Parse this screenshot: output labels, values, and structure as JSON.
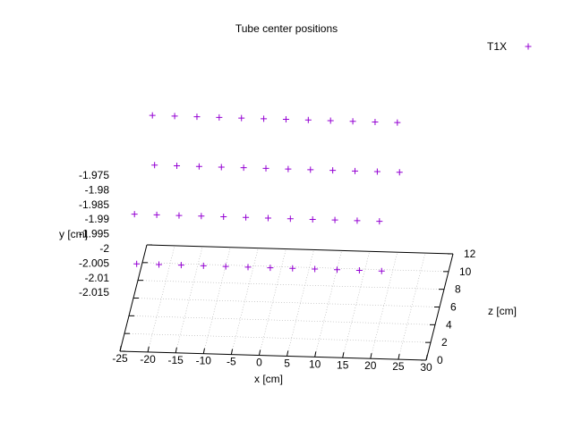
{
  "chart_data": {
    "type": "scatter",
    "title": "Tube center positions",
    "xlabel": "x [cm]",
    "ylabel": "y [cm]",
    "zlabel": "z [cm]",
    "x_ticks": [
      "-25",
      "-20",
      "-15",
      "-10",
      "-5",
      "0",
      "5",
      "10",
      "15",
      "20",
      "25",
      "30"
    ],
    "y_ticks": [
      "-1.975",
      "-1.98",
      "-1.985",
      "-1.99",
      "-1.995",
      "-2",
      "-2.005",
      "-2.01",
      "-2.015"
    ],
    "z_ticks": [
      "0",
      "2",
      "4",
      "6",
      "8",
      "10",
      "12"
    ],
    "xlim": [
      -25,
      30
    ],
    "ylim": [
      -2.02,
      -1.975
    ],
    "zlim": [
      0,
      12
    ],
    "grid": true,
    "legend": "top-right",
    "series": [
      {
        "name": "T1X",
        "marker": "+",
        "color": "#9400d3",
        "rows": [
          {
            "y": -1.975,
            "z": 12,
            "x": [
              -24,
              -20,
              -16,
              -12,
              -8,
              -4,
              0,
              4,
              8,
              12,
              16,
              20
            ]
          },
          {
            "y": -1.98,
            "z": 8,
            "x": [
              -22,
              -18,
              -14,
              -10,
              -6,
              -2,
              2,
              6,
              10,
              14,
              18,
              22
            ]
          },
          {
            "y": -1.985,
            "z": 4,
            "x": [
              -24,
              -20,
              -16,
              -12,
              -8,
              -4,
              0,
              4,
              8,
              12,
              16,
              20
            ]
          },
          {
            "y": -1.99,
            "z": 0,
            "x": [
              -22,
              -18,
              -14,
              -10,
              -6,
              -2,
              2,
              6,
              10,
              14,
              18,
              22
            ]
          }
        ]
      }
    ]
  }
}
